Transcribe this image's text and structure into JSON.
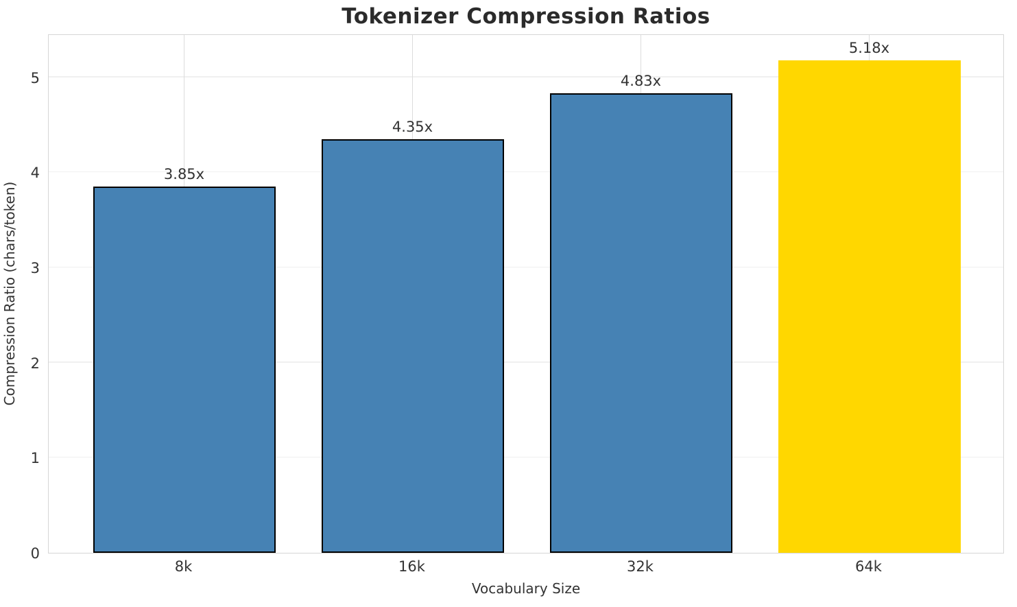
{
  "chart_data": {
    "type": "bar",
    "title": "Tokenizer Compression Ratios",
    "xlabel": "Vocabulary Size",
    "ylabel": "Compression Ratio (chars/token)",
    "categories": [
      "8k",
      "16k",
      "32k",
      "64k"
    ],
    "values": [
      3.85,
      4.35,
      4.83,
      5.18
    ],
    "value_labels": [
      "3.85x",
      "4.35x",
      "4.83x",
      "5.18x"
    ],
    "bar_colors": [
      "#4682B4",
      "#4682B4",
      "#4682B4",
      "#FFD700"
    ],
    "bar_edge_colors": [
      "#000000",
      "#000000",
      "#000000",
      "none"
    ],
    "base_color": "#4682B4",
    "highlight_color": "#FFD700",
    "yticks": [
      0,
      1,
      2,
      3,
      4,
      5
    ],
    "ylim": [
      0,
      5.46
    ],
    "grid": true,
    "legend_position": "none"
  }
}
